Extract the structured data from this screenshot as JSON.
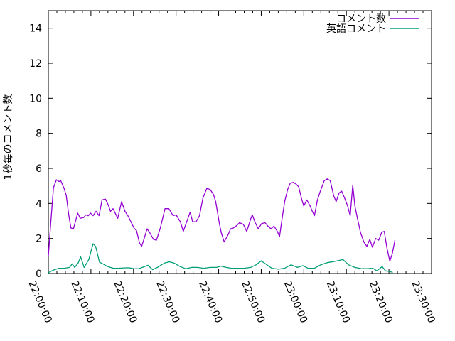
{
  "chart_data": {
    "type": "line",
    "title": "",
    "xlabel": "",
    "ylabel": "1秒毎のコメント数",
    "ylim": [
      0,
      15
    ],
    "xlim_minutes": [
      0,
      90
    ],
    "grid": false,
    "legend_position": "top-right-inside",
    "y_ticks": [
      0,
      2,
      4,
      6,
      8,
      10,
      12,
      14
    ],
    "x_ticks": [
      {
        "t": 0,
        "label": "22:00:00"
      },
      {
        "t": 10,
        "label": "22:10:00"
      },
      {
        "t": 20,
        "label": "22:20:00"
      },
      {
        "t": 30,
        "label": "22:30:00"
      },
      {
        "t": 40,
        "label": "22:40:00"
      },
      {
        "t": 50,
        "label": "22:50:00"
      },
      {
        "t": 60,
        "label": "23:00:00"
      },
      {
        "t": 70,
        "label": "23:10:00"
      },
      {
        "t": 80,
        "label": "23:20:00"
      },
      {
        "t": 90,
        "label": "23:30:00"
      }
    ],
    "x_minor_tick_minutes": 2,
    "series": [
      {
        "name": "コメント数",
        "color": "#9400d3",
        "points": [
          [
            0,
            1.0
          ],
          [
            0.6,
            3.0
          ],
          [
            1.2,
            4.9
          ],
          [
            1.9,
            5.35
          ],
          [
            2.5,
            5.25
          ],
          [
            2.9,
            5.3
          ],
          [
            3.7,
            4.85
          ],
          [
            4.2,
            4.45
          ],
          [
            4.8,
            3.35
          ],
          [
            5.3,
            2.6
          ],
          [
            5.9,
            2.55
          ],
          [
            6.4,
            3.0
          ],
          [
            6.9,
            3.45
          ],
          [
            7.5,
            3.15
          ],
          [
            8.3,
            3.2
          ],
          [
            8.8,
            3.35
          ],
          [
            9.4,
            3.3
          ],
          [
            9.9,
            3.45
          ],
          [
            10.5,
            3.3
          ],
          [
            11.2,
            3.55
          ],
          [
            11.9,
            3.3
          ],
          [
            12.6,
            4.2
          ],
          [
            13.4,
            4.25
          ],
          [
            14.1,
            3.9
          ],
          [
            14.6,
            3.55
          ],
          [
            15.2,
            3.7
          ],
          [
            16.3,
            3.15
          ],
          [
            17.2,
            4.1
          ],
          [
            18.0,
            3.55
          ],
          [
            18.8,
            3.25
          ],
          [
            19.5,
            2.9
          ],
          [
            20.1,
            2.6
          ],
          [
            20.7,
            2.45
          ],
          [
            21.4,
            1.75
          ],
          [
            21.9,
            1.55
          ],
          [
            22.5,
            2.0
          ],
          [
            23.2,
            2.55
          ],
          [
            23.9,
            2.3
          ],
          [
            24.7,
            1.95
          ],
          [
            25.4,
            1.9
          ],
          [
            26.3,
            2.6
          ],
          [
            27.4,
            3.7
          ],
          [
            28.3,
            3.7
          ],
          [
            29.3,
            3.3
          ],
          [
            30.0,
            3.35
          ],
          [
            31.0,
            2.95
          ],
          [
            31.7,
            2.4
          ],
          [
            32.5,
            2.95
          ],
          [
            33.3,
            3.5
          ],
          [
            33.9,
            2.95
          ],
          [
            34.7,
            2.95
          ],
          [
            35.5,
            3.3
          ],
          [
            36.3,
            4.3
          ],
          [
            37.2,
            4.85
          ],
          [
            38.0,
            4.8
          ],
          [
            38.8,
            4.5
          ],
          [
            39.3,
            4.1
          ],
          [
            40.2,
            2.8
          ],
          [
            40.6,
            2.35
          ],
          [
            41.3,
            1.8
          ],
          [
            42.2,
            2.2
          ],
          [
            42.8,
            2.55
          ],
          [
            43.5,
            2.6
          ],
          [
            44.3,
            2.75
          ],
          [
            44.9,
            2.9
          ],
          [
            45.8,
            2.8
          ],
          [
            46.6,
            2.4
          ],
          [
            47.5,
            3.1
          ],
          [
            47.9,
            3.35
          ],
          [
            48.6,
            2.9
          ],
          [
            49.3,
            2.55
          ],
          [
            50.1,
            2.85
          ],
          [
            50.9,
            2.9
          ],
          [
            51.6,
            2.7
          ],
          [
            52.3,
            2.55
          ],
          [
            53.0,
            2.7
          ],
          [
            53.8,
            2.4
          ],
          [
            54.3,
            2.1
          ],
          [
            55.0,
            3.3
          ],
          [
            55.5,
            4.1
          ],
          [
            56.2,
            4.8
          ],
          [
            56.8,
            5.15
          ],
          [
            57.5,
            5.2
          ],
          [
            58.2,
            5.1
          ],
          [
            58.8,
            4.95
          ],
          [
            59.5,
            4.25
          ],
          [
            60.0,
            3.85
          ],
          [
            60.7,
            4.2
          ],
          [
            61.4,
            3.9
          ],
          [
            62.0,
            3.55
          ],
          [
            62.5,
            3.3
          ],
          [
            63.2,
            4.2
          ],
          [
            63.8,
            4.65
          ],
          [
            64.8,
            5.3
          ],
          [
            65.5,
            5.4
          ],
          [
            66.2,
            5.3
          ],
          [
            67.0,
            4.45
          ],
          [
            67.6,
            4.1
          ],
          [
            68.3,
            4.6
          ],
          [
            68.9,
            4.7
          ],
          [
            69.6,
            4.3
          ],
          [
            70.3,
            3.85
          ],
          [
            70.9,
            3.3
          ],
          [
            71.5,
            5.05
          ],
          [
            72.0,
            3.85
          ],
          [
            72.6,
            3.15
          ],
          [
            73.3,
            2.35
          ],
          [
            74.1,
            1.8
          ],
          [
            74.8,
            1.55
          ],
          [
            75.5,
            1.95
          ],
          [
            76.1,
            1.5
          ],
          [
            76.9,
            2.0
          ],
          [
            77.6,
            1.9
          ],
          [
            78.3,
            2.35
          ],
          [
            78.9,
            2.4
          ],
          [
            79.5,
            1.5
          ],
          [
            80.2,
            0.7
          ],
          [
            80.8,
            1.15
          ],
          [
            81.4,
            1.9
          ]
        ]
      },
      {
        "name": "英語コメント",
        "color": "#009e73",
        "points": [
          [
            0,
            0.05
          ],
          [
            1.2,
            0.2
          ],
          [
            2.5,
            0.3
          ],
          [
            3.7,
            0.3
          ],
          [
            5.0,
            0.35
          ],
          [
            5.6,
            0.55
          ],
          [
            6.2,
            0.35
          ],
          [
            7.0,
            0.6
          ],
          [
            7.6,
            0.95
          ],
          [
            8.4,
            0.35
          ],
          [
            9.5,
            0.8
          ],
          [
            10.5,
            1.7
          ],
          [
            11.1,
            1.55
          ],
          [
            12.0,
            0.65
          ],
          [
            12.8,
            0.55
          ],
          [
            13.9,
            0.4
          ],
          [
            15.3,
            0.3
          ],
          [
            16.5,
            0.3
          ],
          [
            17.7,
            0.32
          ],
          [
            18.9,
            0.33
          ],
          [
            20.1,
            0.28
          ],
          [
            21.2,
            0.27
          ],
          [
            22.4,
            0.38
          ],
          [
            23.4,
            0.47
          ],
          [
            24.5,
            0.22
          ],
          [
            25.6,
            0.35
          ],
          [
            26.6,
            0.5
          ],
          [
            27.3,
            0.6
          ],
          [
            28.4,
            0.67
          ],
          [
            29.5,
            0.6
          ],
          [
            30.9,
            0.4
          ],
          [
            32.3,
            0.27
          ],
          [
            33.7,
            0.35
          ],
          [
            35.0,
            0.35
          ],
          [
            36.5,
            0.3
          ],
          [
            38.0,
            0.35
          ],
          [
            39.5,
            0.35
          ],
          [
            40.5,
            0.42
          ],
          [
            41.8,
            0.35
          ],
          [
            43.0,
            0.3
          ],
          [
            44.5,
            0.3
          ],
          [
            46.0,
            0.3
          ],
          [
            47.5,
            0.35
          ],
          [
            48.8,
            0.5
          ],
          [
            50.0,
            0.72
          ],
          [
            51.0,
            0.55
          ],
          [
            52.5,
            0.3
          ],
          [
            54.0,
            0.25
          ],
          [
            55.5,
            0.3
          ],
          [
            57.0,
            0.5
          ],
          [
            58.5,
            0.35
          ],
          [
            59.8,
            0.45
          ],
          [
            61.0,
            0.3
          ],
          [
            62.5,
            0.3
          ],
          [
            64.0,
            0.5
          ],
          [
            65.5,
            0.62
          ],
          [
            67.0,
            0.68
          ],
          [
            68.2,
            0.74
          ],
          [
            69.2,
            0.8
          ],
          [
            70.5,
            0.5
          ],
          [
            72.0,
            0.35
          ],
          [
            73.5,
            0.28
          ],
          [
            74.8,
            0.28
          ],
          [
            76.2,
            0.3
          ],
          [
            77.2,
            0.15
          ],
          [
            78.4,
            0.4
          ],
          [
            79.2,
            0.15
          ],
          [
            80.0,
            0.12
          ],
          [
            80.8,
            0.07
          ]
        ]
      }
    ]
  }
}
